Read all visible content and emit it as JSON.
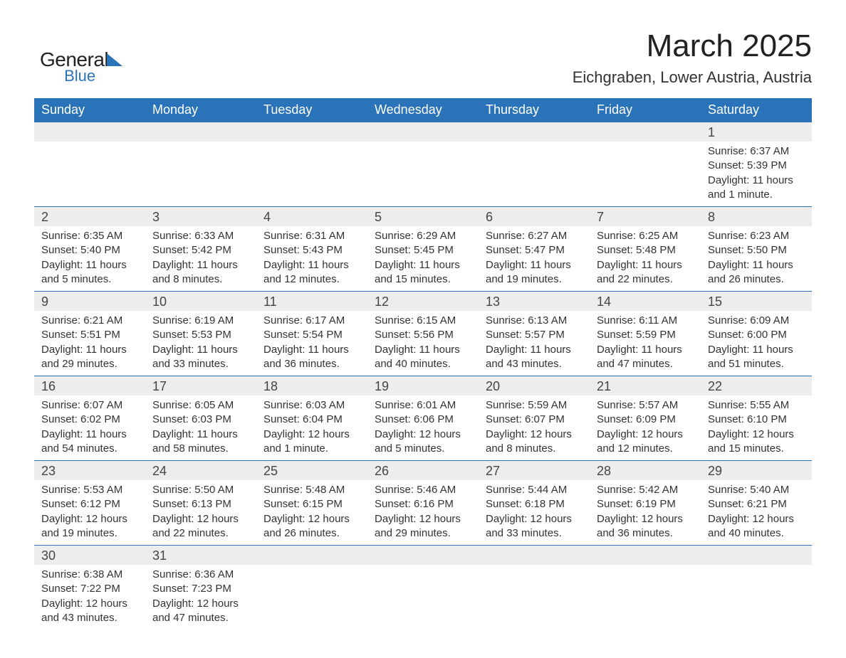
{
  "brand": {
    "line1": "General",
    "line2": "Blue"
  },
  "title": "March 2025",
  "location": "Eichgraben, Lower Austria, Austria",
  "colors": {
    "header_bg": "#2a73b8",
    "header_text": "#ffffff",
    "daynum_bg": "#ededed",
    "border": "#2a73b8",
    "text": "#333333",
    "page_bg": "#ffffff"
  },
  "weekdays": [
    "Sunday",
    "Monday",
    "Tuesday",
    "Wednesday",
    "Thursday",
    "Friday",
    "Saturday"
  ],
  "labels": {
    "sunrise": "Sunrise:",
    "sunset": "Sunset:",
    "daylight": "Daylight:"
  },
  "weeks": [
    [
      null,
      null,
      null,
      null,
      null,
      null,
      {
        "n": "1",
        "sr": "6:37 AM",
        "ss": "5:39 PM",
        "dl": "11 hours and 1 minute."
      }
    ],
    [
      {
        "n": "2",
        "sr": "6:35 AM",
        "ss": "5:40 PM",
        "dl": "11 hours and 5 minutes."
      },
      {
        "n": "3",
        "sr": "6:33 AM",
        "ss": "5:42 PM",
        "dl": "11 hours and 8 minutes."
      },
      {
        "n": "4",
        "sr": "6:31 AM",
        "ss": "5:43 PM",
        "dl": "11 hours and 12 minutes."
      },
      {
        "n": "5",
        "sr": "6:29 AM",
        "ss": "5:45 PM",
        "dl": "11 hours and 15 minutes."
      },
      {
        "n": "6",
        "sr": "6:27 AM",
        "ss": "5:47 PM",
        "dl": "11 hours and 19 minutes."
      },
      {
        "n": "7",
        "sr": "6:25 AM",
        "ss": "5:48 PM",
        "dl": "11 hours and 22 minutes."
      },
      {
        "n": "8",
        "sr": "6:23 AM",
        "ss": "5:50 PM",
        "dl": "11 hours and 26 minutes."
      }
    ],
    [
      {
        "n": "9",
        "sr": "6:21 AM",
        "ss": "5:51 PM",
        "dl": "11 hours and 29 minutes."
      },
      {
        "n": "10",
        "sr": "6:19 AM",
        "ss": "5:53 PM",
        "dl": "11 hours and 33 minutes."
      },
      {
        "n": "11",
        "sr": "6:17 AM",
        "ss": "5:54 PM",
        "dl": "11 hours and 36 minutes."
      },
      {
        "n": "12",
        "sr": "6:15 AM",
        "ss": "5:56 PM",
        "dl": "11 hours and 40 minutes."
      },
      {
        "n": "13",
        "sr": "6:13 AM",
        "ss": "5:57 PM",
        "dl": "11 hours and 43 minutes."
      },
      {
        "n": "14",
        "sr": "6:11 AM",
        "ss": "5:59 PM",
        "dl": "11 hours and 47 minutes."
      },
      {
        "n": "15",
        "sr": "6:09 AM",
        "ss": "6:00 PM",
        "dl": "11 hours and 51 minutes."
      }
    ],
    [
      {
        "n": "16",
        "sr": "6:07 AM",
        "ss": "6:02 PM",
        "dl": "11 hours and 54 minutes."
      },
      {
        "n": "17",
        "sr": "6:05 AM",
        "ss": "6:03 PM",
        "dl": "11 hours and 58 minutes."
      },
      {
        "n": "18",
        "sr": "6:03 AM",
        "ss": "6:04 PM",
        "dl": "12 hours and 1 minute."
      },
      {
        "n": "19",
        "sr": "6:01 AM",
        "ss": "6:06 PM",
        "dl": "12 hours and 5 minutes."
      },
      {
        "n": "20",
        "sr": "5:59 AM",
        "ss": "6:07 PM",
        "dl": "12 hours and 8 minutes."
      },
      {
        "n": "21",
        "sr": "5:57 AM",
        "ss": "6:09 PM",
        "dl": "12 hours and 12 minutes."
      },
      {
        "n": "22",
        "sr": "5:55 AM",
        "ss": "6:10 PM",
        "dl": "12 hours and 15 minutes."
      }
    ],
    [
      {
        "n": "23",
        "sr": "5:53 AM",
        "ss": "6:12 PM",
        "dl": "12 hours and 19 minutes."
      },
      {
        "n": "24",
        "sr": "5:50 AM",
        "ss": "6:13 PM",
        "dl": "12 hours and 22 minutes."
      },
      {
        "n": "25",
        "sr": "5:48 AM",
        "ss": "6:15 PM",
        "dl": "12 hours and 26 minutes."
      },
      {
        "n": "26",
        "sr": "5:46 AM",
        "ss": "6:16 PM",
        "dl": "12 hours and 29 minutes."
      },
      {
        "n": "27",
        "sr": "5:44 AM",
        "ss": "6:18 PM",
        "dl": "12 hours and 33 minutes."
      },
      {
        "n": "28",
        "sr": "5:42 AM",
        "ss": "6:19 PM",
        "dl": "12 hours and 36 minutes."
      },
      {
        "n": "29",
        "sr": "5:40 AM",
        "ss": "6:21 PM",
        "dl": "12 hours and 40 minutes."
      }
    ],
    [
      {
        "n": "30",
        "sr": "6:38 AM",
        "ss": "7:22 PM",
        "dl": "12 hours and 43 minutes."
      },
      {
        "n": "31",
        "sr": "6:36 AM",
        "ss": "7:23 PM",
        "dl": "12 hours and 47 minutes."
      },
      null,
      null,
      null,
      null,
      null
    ]
  ]
}
